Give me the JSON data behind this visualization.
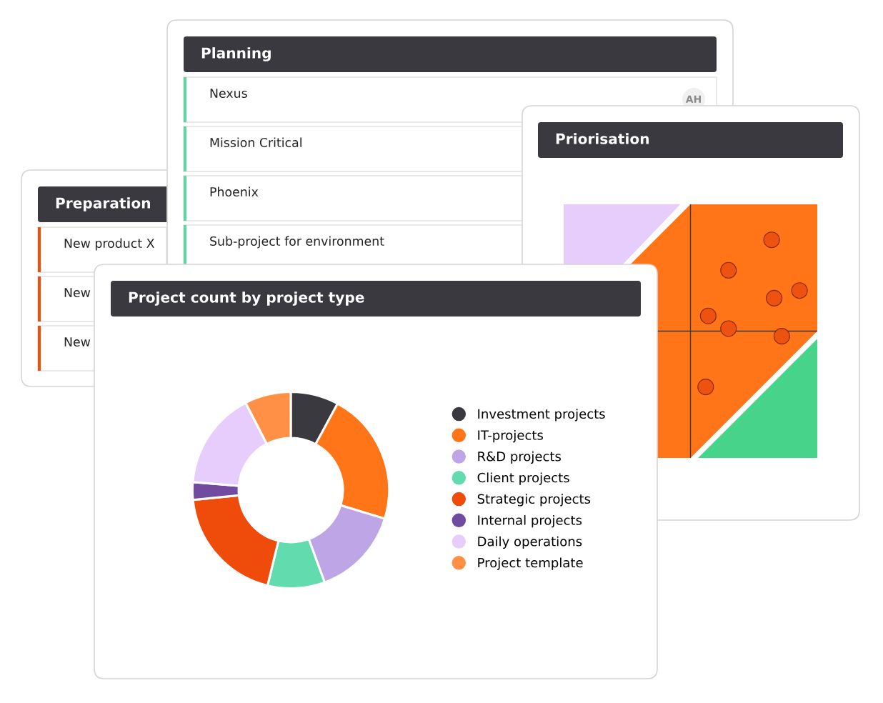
{
  "chart_data": [
    {
      "type": "other",
      "title": "Preparation",
      "annotations": [
        "New product X",
        "New",
        "New"
      ]
    },
    {
      "type": "other",
      "title": "Planning",
      "annotations": [
        "Nexus",
        "Mission Critical",
        "Phoenix",
        "Sub-project for environment",
        "AH"
      ]
    },
    {
      "type": "other",
      "title": "Priorisation"
    },
    {
      "type": "donut",
      "title": "Project count by project type",
      "legend": "right",
      "categories": [
        "Investment projects",
        "IT-projects",
        "R&D projects",
        "Client projects",
        "Strategic projects",
        "Internal projects",
        "Daily operations",
        "Project template"
      ],
      "values": [
        7.9,
        21.8,
        14.7,
        9.4,
        19.6,
        2.9,
        16.1,
        7.6
      ],
      "colors": [
        "#3a393f",
        "#ff7518",
        "#bea6e6",
        "#62dcaf",
        "#ef4b0a",
        "#714ba0",
        "#e6cdfb",
        "#ff9045"
      ]
    }
  ]
}
